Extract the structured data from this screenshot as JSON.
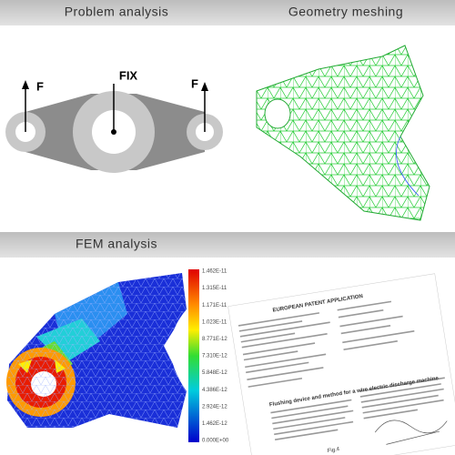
{
  "headers": {
    "problem": "Problem analysis",
    "meshing": "Geometry meshing",
    "fem": "FEM analysis"
  },
  "problem_diagram": {
    "left_force": "F",
    "fix": "FIX",
    "right_force": "F"
  },
  "fem_scale": [
    "1.462E-11",
    "1.315E-11",
    "1.171E-11",
    "1.023E-11",
    "8.771E-12",
    "7.310E-12",
    "5.848E-12",
    "4.386E-12",
    "2.924E-12",
    "1.462E-12",
    "0.000E+00"
  ],
  "patent": {
    "title": "EUROPEAN PATENT APPLICATION",
    "invention": "Flushing device and method for a wire electric discharge machine",
    "figure": "Fig.4"
  }
}
